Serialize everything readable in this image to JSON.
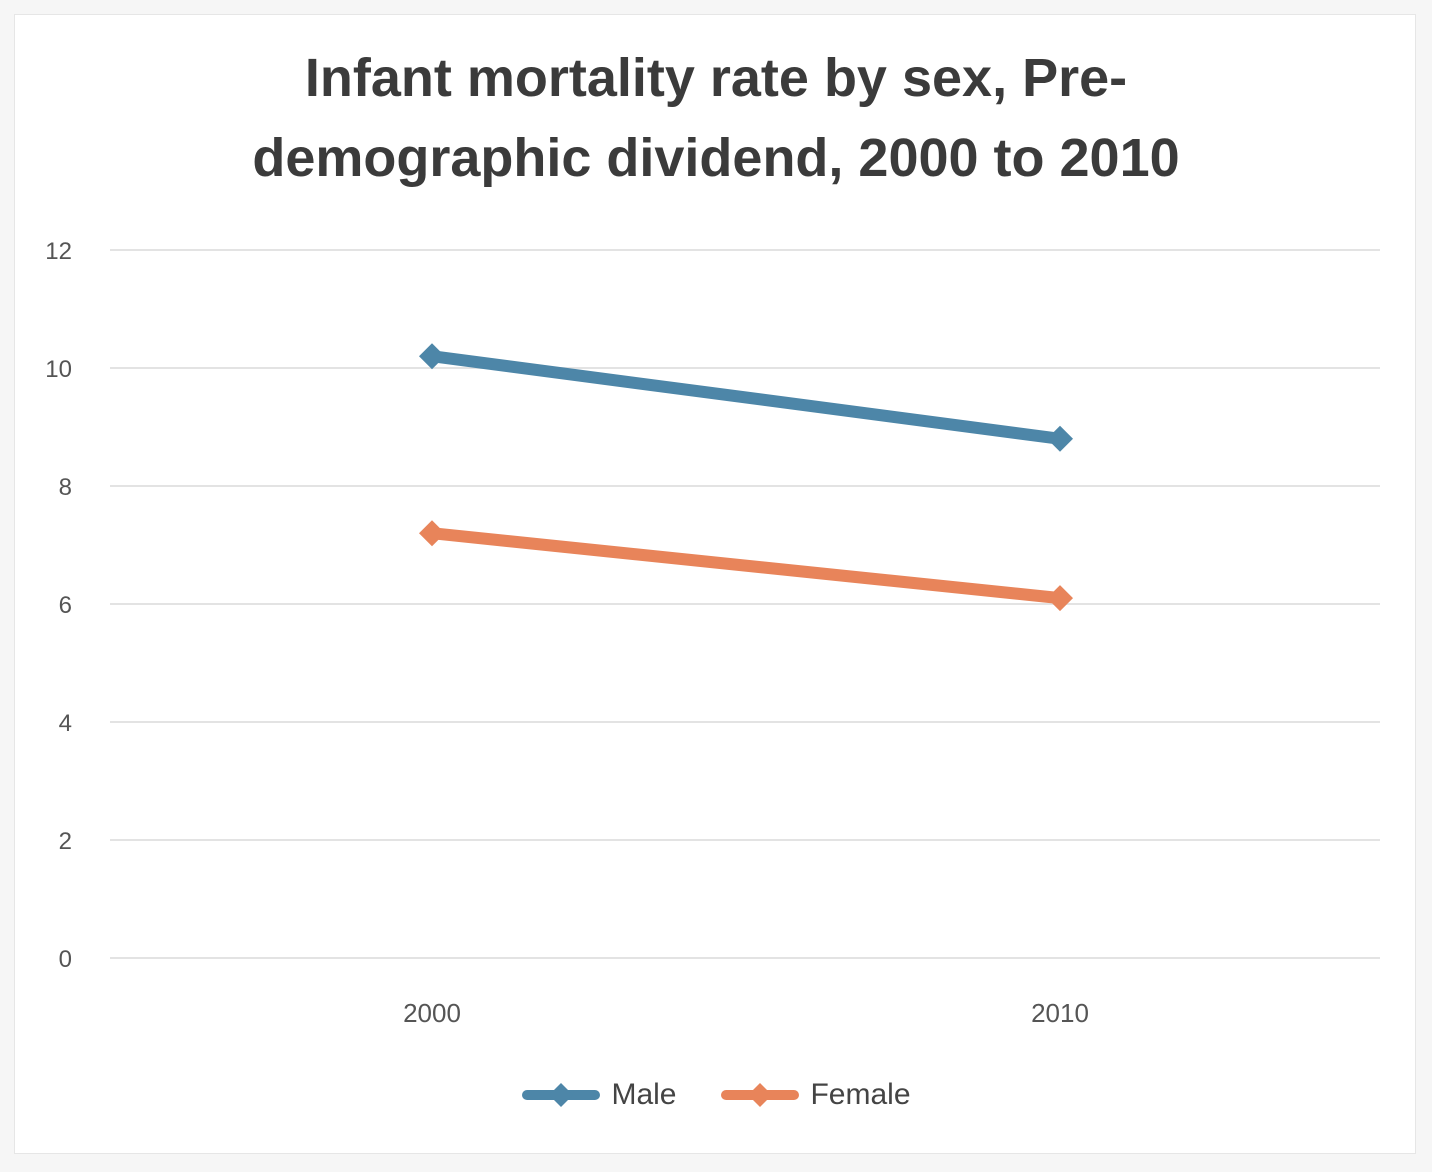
{
  "chart_data": {
    "type": "line",
    "title_lines": [
      "Infant mortality rate by sex, Pre-",
      "demographic dividend, 2000 to 2010"
    ],
    "categories": [
      "2000",
      "2010"
    ],
    "series": [
      {
        "name": "Male",
        "color": "#4d86a8",
        "values": [
          10.2,
          8.8
        ]
      },
      {
        "name": "Female",
        "color": "#e8845a",
        "values": [
          7.2,
          6.1
        ]
      }
    ],
    "y_ticks": [
      "0",
      "2",
      "4",
      "6",
      "8",
      "10",
      "12"
    ],
    "ylim": [
      0,
      12
    ],
    "xlabel": "",
    "ylabel": "",
    "grid": true,
    "legend_position": "bottom"
  }
}
